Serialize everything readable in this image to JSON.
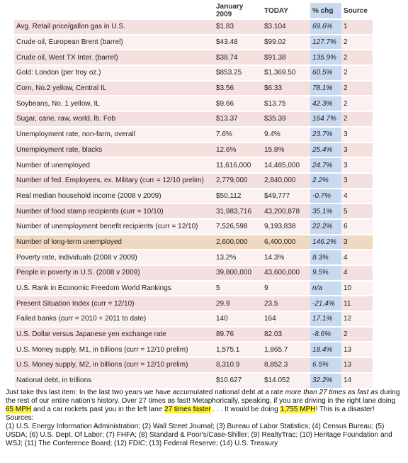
{
  "table": {
    "columns": [
      "",
      "January 2009",
      "TODAY",
      "% chg",
      "Source"
    ],
    "rows": [
      [
        "Avg. Retail price/gallon gas in U.S.",
        "$1.83",
        "$3.104",
        "69.6%",
        "1"
      ],
      [
        "Crude oil, European Brent (barrel)",
        "$43.48",
        "$99.02",
        "127.7%",
        "2"
      ],
      [
        "Crude oil, West TX Inter. (barrel)",
        "$38.74",
        "$91.38",
        "135.9%",
        "2"
      ],
      [
        "Gold: London (per troy oz.)",
        "$853.25",
        "$1,369.50",
        "60.5%",
        "2"
      ],
      [
        "Corn, No.2 yellow, Central IL",
        "$3.56",
        "$6.33",
        "78.1%",
        "2"
      ],
      [
        "Soybeans, No. 1 yellow, IL",
        "$9.66",
        "$13.75",
        "42.3%",
        "2"
      ],
      [
        "Sugar, cane, raw, world, lb. Fob",
        "$13.37",
        "$35.39",
        "164.7%",
        "2"
      ],
      [
        "Unemployment rate, non-farm, overall",
        "7.6%",
        "9.4%",
        "23.7%",
        "3"
      ],
      [
        "Unemployment rate, blacks",
        "12.6%",
        "15.8%",
        "25.4%",
        "3"
      ],
      [
        "Number of unemployed",
        "11,616,000",
        "14,485,000",
        "24.7%",
        "3"
      ],
      [
        "Number of fed. Employees, ex. Military (curr = 12/10 prelim)",
        "2,779,000",
        "2,840,000",
        "2.2%",
        "3"
      ],
      [
        "Real median household income (2008 v 2009)",
        "$50,112",
        "$49,777",
        "-0.7%",
        "4"
      ],
      [
        "Number of food stamp recipients (curr = 10/10)",
        "31,983,716",
        "43,200,878",
        "35.1%",
        "5"
      ],
      [
        "Number of unemployment benefit recipients (curr = 12/10)",
        "7,526,598",
        "9,193,838",
        "22.2%",
        "6"
      ],
      [
        "Number of long-term unemployed",
        "2,600,000",
        "6,400,000",
        "146.2%",
        "3"
      ],
      [
        "Poverty rate, individuals (2008 v 2009)",
        "13.2%",
        "14.3%",
        "8.3%",
        "4"
      ],
      [
        "People in poverty in U.S. (2008 v 2009)",
        "39,800,000",
        "43,600,000",
        "9.5%",
        "4"
      ],
      [
        "U.S. Rank in Economic Freedom World Rankings",
        "5",
        "9",
        "n/a",
        "10"
      ],
      [
        "Present Situation Index (curr = 12/10)",
        "29.9",
        "23.5",
        "-21.4%",
        "11"
      ],
      [
        "Failed banks (curr = 2010 + 2011 to date)",
        "140",
        "164",
        "17.1%",
        "12"
      ],
      [
        "U.S. Dollar versus Japanese yen exchange rate",
        "89.76",
        "82.03",
        "-8.6%",
        "2"
      ],
      [
        "U.S. Money supply, M1, in billions (curr = 12/10 prelim)",
        "1,575.1",
        "1,865.7",
        "18.4%",
        "13"
      ],
      [
        "U.S. Money supply, M2, in billions (curr = 12/10 prelim)",
        "8,310.9",
        "8,852.3",
        "6.5%",
        "13"
      ],
      [
        "National debt, in trillions",
        "$10.627",
        "$14.052",
        "32.2%",
        "14"
      ]
    ],
    "highlight_row": 14
  },
  "note": {
    "parts": [
      "Just take this last item:  In the last two years we have accumulated national debt at a rate ",
      "more than 27 times as fast as",
      " during the rest of our entire nation's history.  Over 27 times as fast!  Metaphorically, speaking, if you are driving in the right lane doing ",
      "65 MPH",
      " and a car rockets past you in the left lane ",
      "27 times faster",
      " . . . It would be doing ",
      "1,755 MPH",
      "!  This is a disaster!"
    ]
  },
  "sources": {
    "heading": "Sources:",
    "text": "(1) U.S. Energy Information Administration; (2) Wall Street Journal; (3) Bureau of Labor Statistics; (4) Census Bureau; (5) USDA; (6) U.S. Dept. Of Labor; (7) FHFA; (8) Standard & Poor's/Case-Shiller; (9) RealtyTrac; (10) Heritage Foundation and WSJ; (11) The Conference Board; (12) FDIC; (13) Federal Reserve; (14) U.S. Treasury"
  }
}
